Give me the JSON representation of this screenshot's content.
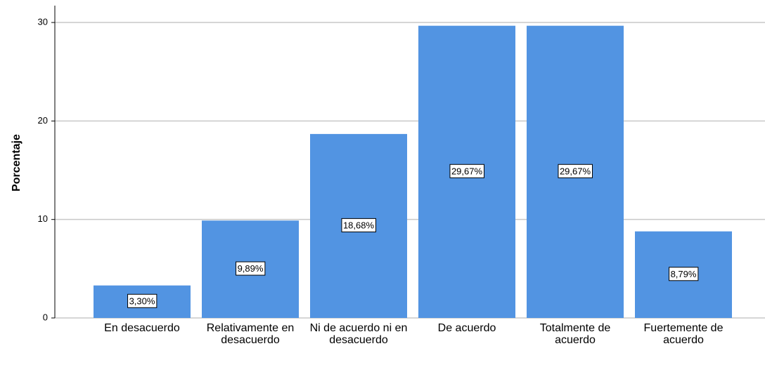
{
  "chart_data": {
    "type": "bar",
    "y_label": "Porcentaje",
    "categories": [
      "En desacuerdo",
      "Relativamente en desacuerdo",
      "Ni de acuerdo ni en desacuerdo",
      "De acuerdo",
      "Totalmente de acuerdo",
      "Fuertemente de acuerdo"
    ],
    "values": [
      3.3,
      9.89,
      18.68,
      29.67,
      29.67,
      8.79
    ],
    "value_labels": [
      "3,30%",
      "9,89%",
      "18,68%",
      "29,67%",
      "29,67%",
      "8,79%"
    ],
    "color": "#5294e2",
    "ylim": [
      0,
      31.5
    ],
    "yticks": [
      0,
      10,
      20,
      30
    ],
    "grid": true
  }
}
